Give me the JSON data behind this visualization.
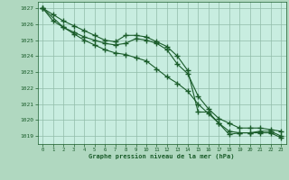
{
  "title": "Graphe pression niveau de la mer (hPa)",
  "fig_bg_color": "#b0d8c0",
  "plot_bg_color": "#c8ede0",
  "grid_color": "#90bca8",
  "line_color": "#1a5c2a",
  "xlim": [
    -0.5,
    23.5
  ],
  "ylim": [
    1018.5,
    1027.4
  ],
  "yticks": [
    1019,
    1020,
    1021,
    1022,
    1023,
    1024,
    1025,
    1026,
    1027
  ],
  "xticks": [
    0,
    1,
    2,
    3,
    4,
    5,
    6,
    7,
    8,
    9,
    10,
    11,
    12,
    13,
    14,
    15,
    16,
    17,
    18,
    19,
    20,
    21,
    22,
    23
  ],
  "line1_x": [
    0,
    1,
    2,
    3,
    4,
    5,
    6,
    7,
    8,
    9,
    10,
    11,
    12,
    13,
    14,
    15,
    16,
    17,
    18,
    19,
    20,
    21,
    22,
    23
  ],
  "line1_y": [
    1027.0,
    1026.6,
    1026.2,
    1025.9,
    1025.6,
    1025.3,
    1025.0,
    1024.9,
    1025.3,
    1025.3,
    1025.2,
    1024.9,
    1024.6,
    1024.0,
    1023.1,
    1020.5,
    1020.5,
    1019.8,
    1019.3,
    1019.2,
    1019.2,
    1019.2,
    1019.2,
    1018.9
  ],
  "line2_x": [
    0,
    1,
    2,
    3,
    4,
    5,
    6,
    7,
    8,
    9,
    10,
    11,
    12,
    13,
    14,
    15,
    16,
    17,
    18,
    19,
    20,
    21,
    22,
    23
  ],
  "line2_y": [
    1027.0,
    1026.2,
    1025.8,
    1025.5,
    1025.2,
    1025.0,
    1024.8,
    1024.7,
    1024.8,
    1025.1,
    1025.0,
    1024.8,
    1024.4,
    1023.5,
    1022.9,
    1021.5,
    1020.7,
    1020.1,
    1019.8,
    1019.5,
    1019.5,
    1019.5,
    1019.4,
    1019.3
  ],
  "line3_x": [
    0,
    2,
    3,
    4,
    5,
    6,
    7,
    8,
    9,
    10,
    11,
    12,
    13,
    14,
    15,
    16,
    17,
    18,
    19,
    20,
    21,
    22,
    23
  ],
  "line3_y": [
    1027.0,
    1025.8,
    1025.4,
    1025.0,
    1024.7,
    1024.4,
    1024.2,
    1024.1,
    1023.9,
    1023.7,
    1023.2,
    1022.7,
    1022.3,
    1021.8,
    1021.0,
    1020.4,
    1019.8,
    1019.1,
    1019.2,
    1019.2,
    1019.3,
    1019.3,
    1019.0
  ]
}
